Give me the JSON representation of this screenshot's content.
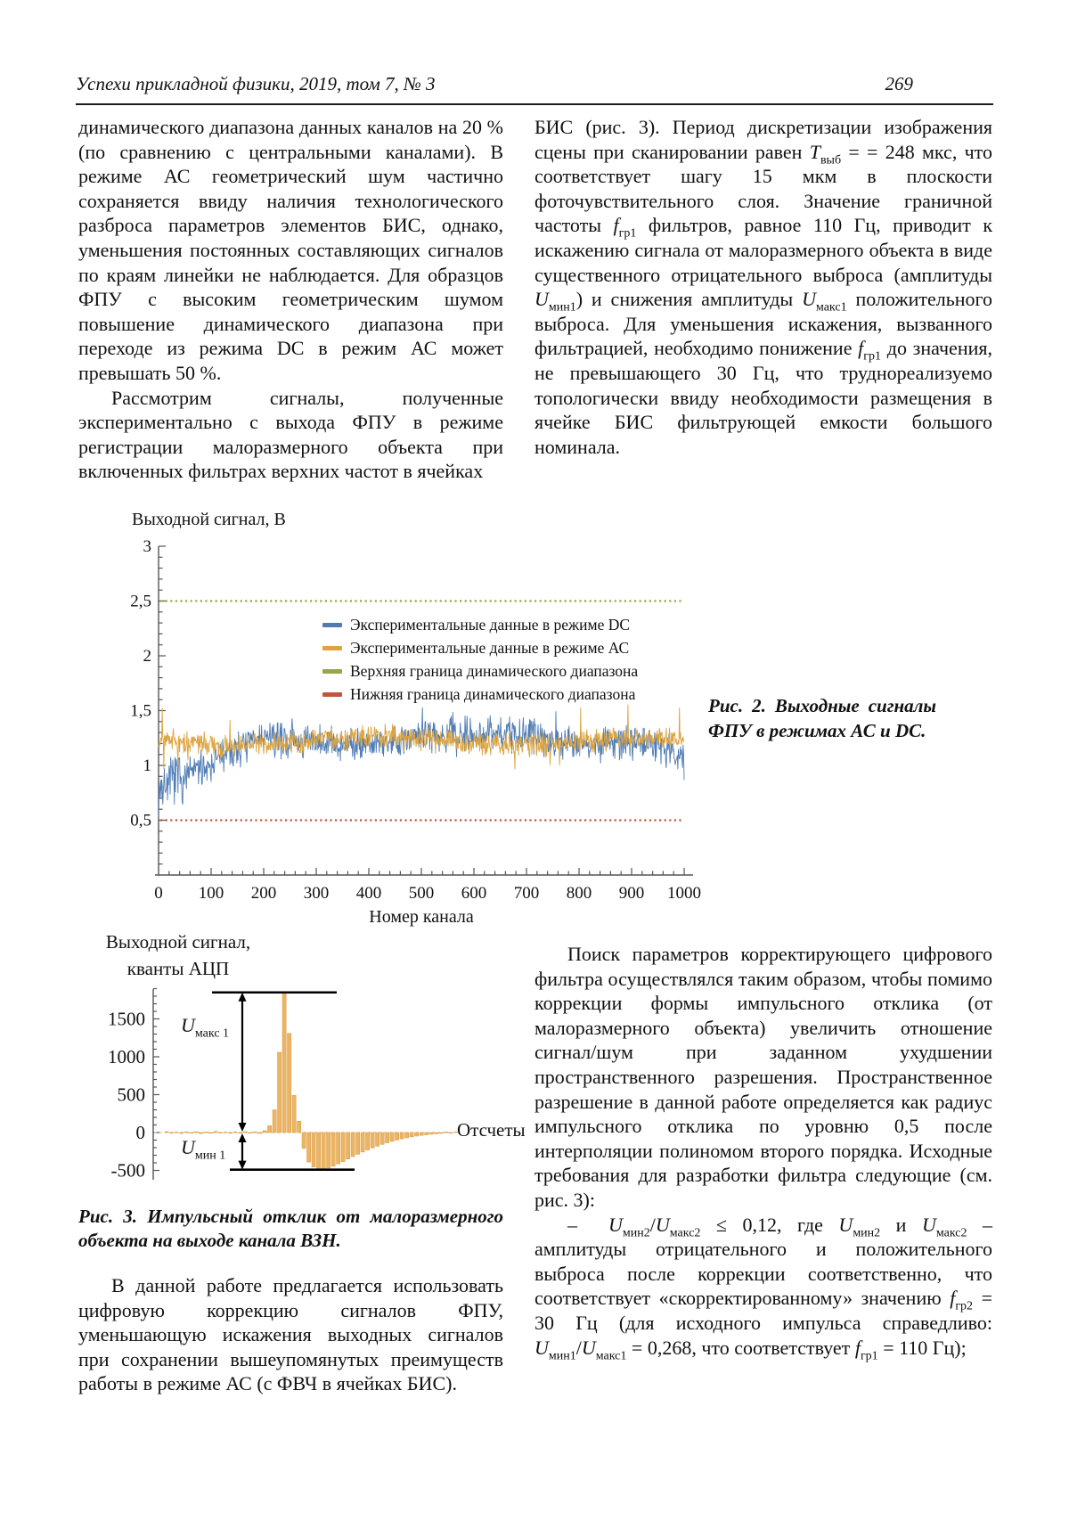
{
  "header": {
    "journal": "Успехи прикладной физики, 2019, том 7, № 3",
    "page_number": "269"
  },
  "columns": {
    "left_top": {
      "p1": "динамического диапазона данных каналов на 20 % (по сравнению с центральными каналами). В режиме АС геометрический шум частично сохраняется ввиду наличия технологического разброса параметров элементов БИС, однако, уменьшения постоянных составляющих сигналов по краям линейки не наблюдается. Для образцов ФПУ с высоким геометрическим шумом повышение динамического диапазона при переходе из режима DC в режим АС может превышать 50 %.",
      "p2": "Рассмотрим сигналы, полученные экспериментально с выхода ФПУ в режиме регистрации малоразмерного объекта при включенных фильтрах верхних частот в ячейках"
    },
    "right_top": {
      "p1": [
        {
          "t": "БИС (рис. 3). Период дискретизации изображения сцены при сканировании равен "
        },
        {
          "t": "T",
          "i": 1
        },
        {
          "t": "выб",
          "s": 1
        },
        {
          "t": " = = 248 мкс, что соответствует шагу 15 мкм в плоскости фоточувствительного слоя. Значение граничной частоты "
        },
        {
          "t": "f",
          "i": 1
        },
        {
          "t": "гр1",
          "s": 1
        },
        {
          "t": " фильтров, равное 110 Гц, приводит к искажению сигнала от малоразмерного объекта в виде существенного отрицательного выброса (амплитуды "
        },
        {
          "t": "U",
          "i": 1
        },
        {
          "t": "мин1",
          "s": 1
        },
        {
          "t": ") и снижения амплитуды "
        },
        {
          "t": "U",
          "i": 1
        },
        {
          "t": "макс1",
          "s": 1
        },
        {
          "t": " положительного выброса. Для уменьшения искажения, вызванного фильтрацией, необходимо понижение "
        },
        {
          "t": "f",
          "i": 1
        },
        {
          "t": "гр1",
          "s": 1
        },
        {
          "t": " до значения, не превышающего 30 Гц, что труднореализуемо топологически ввиду необходимости размещения в ячейке БИС фильтрующей емкости большого номинала."
        }
      ]
    },
    "left_bottom": {
      "p1": "В данной работе предлагается использовать цифровую коррекцию сигналов ФПУ, уменьшающую искажения выходных сигналов при сохранении вышеупомянутых преимуществ работы в режиме АС (с ФВЧ в ячейках БИС)."
    },
    "right_bottom": {
      "p1": "Поиск параметров корректирующего цифрового фильтра осуществлялся таким образом, чтобы помимо коррекции формы импульсного отклика (от малоразмерного объекта) увеличить отношение сигнал/шум при заданном ухудшении пространственного разрешения. Пространственное разрешение в данной работе определяется как радиус импульсного отклика по уровню 0,5 после интерполяции полиномом второго порядка. Исходные требования для разработки фильтра следующие (см. рис. 3):",
      "p2": [
        {
          "t": "–  "
        },
        {
          "t": "U",
          "i": 1
        },
        {
          "t": "мин2",
          "s": 1
        },
        {
          "t": "/"
        },
        {
          "t": "U",
          "i": 1
        },
        {
          "t": "макс2",
          "s": 1
        },
        {
          "t": " ≤ 0,12, где "
        },
        {
          "t": "U",
          "i": 1
        },
        {
          "t": "мин2",
          "s": 1
        },
        {
          "t": " и "
        },
        {
          "t": "U",
          "i": 1
        },
        {
          "t": "макс2",
          "s": 1
        },
        {
          "t": " – амплитуды отрицательного и положительного выброса после коррекции соответственно, что соответствует «скорректированному» значению "
        },
        {
          "t": "f",
          "i": 1
        },
        {
          "t": "гр2",
          "s": 1
        },
        {
          "t": " = 30 Гц (для исходного импульса справедливо: "
        },
        {
          "t": "U",
          "i": 1
        },
        {
          "t": "мин1",
          "s": 1
        },
        {
          "t": "/"
        },
        {
          "t": "U",
          "i": 1
        },
        {
          "t": "макс1",
          "s": 1
        },
        {
          "t": " = 0,268, что соответствует "
        },
        {
          "t": "f",
          "i": 1
        },
        {
          "t": "гр1",
          "s": 1
        },
        {
          "t": " = 110 Гц);"
        }
      ]
    }
  },
  "figure2": {
    "caption": "Рис. 2.  Выходные  сигналы ФПУ в режимах АС и DC."
  },
  "figure3": {
    "caption": "Рис. 3. Импульсный отклик от малоразмерного объекта на выходе канала ВЗН."
  },
  "chart_data": [
    {
      "id": "fig2",
      "type": "line",
      "title": "",
      "ylabel": "Выходной сигнал, В",
      "xlabel": "Номер канала",
      "x_range": [
        0,
        1000
      ],
      "y_range": [
        0,
        3
      ],
      "x_major_ticks": [
        0,
        100,
        200,
        300,
        400,
        500,
        600,
        700,
        800,
        900,
        1000
      ],
      "x_minor_step": 20,
      "y_major_ticks": [
        0.5,
        1,
        1.5,
        2,
        2.5,
        3
      ],
      "y_tick_labels": [
        "0,5",
        "1",
        "1,5",
        "2",
        "2,5",
        "3"
      ],
      "y_minor_step": 0.1,
      "grid": false,
      "legend_position": "inside-upper-middle",
      "series": [
        {
          "name": "Экспериментальные данные в режиме DC",
          "color": "#4f7cb4",
          "kind": "noisy",
          "start_mean": 0.78,
          "plateau_mean": 1.25,
          "rise_end_channel": 190,
          "wobble": 0.05,
          "noise": 0.11,
          "spike_chance": 0.02,
          "spike_scale": 0.28,
          "early": {
            "until": 50,
            "factor": 1.5
          },
          "end_dip": {
            "from": 950,
            "depth": 0.22
          },
          "clamp": [
            0.52,
            1.82
          ],
          "seed": 7
        },
        {
          "name": "Экспериментальные данные в режиме АС",
          "color": "#dca33e",
          "kind": "noisy",
          "start_mean": 1.2,
          "plateau_mean": 1.22,
          "rise_end_channel": 1,
          "wobble": 0.035,
          "noise": 0.075,
          "spike_chance": 0.012,
          "spike_scale": 0.3,
          "clamp": [
            0.92,
            1.68
          ],
          "seed": 3
        },
        {
          "name": "Верхняя граница динамического диапазона",
          "color": "#95a748",
          "kind": "hline",
          "value": 2.5,
          "dashed": true
        },
        {
          "name": "Нижняя граница динамического диапазона",
          "color": "#c0563e",
          "kind": "hline",
          "value": 0.5,
          "dashed": true
        }
      ]
    },
    {
      "id": "fig3",
      "type": "bar",
      "title": "",
      "ylabel_lines": [
        "Выходной сигнал,",
        "кванты АЦП"
      ],
      "xlabel": "Отсчеты",
      "y_major_ticks": [
        -500,
        0,
        500,
        1000,
        1500
      ],
      "y_minor_step": 100,
      "bar_color": "#ecb565",
      "bar_stroke": "#d79c3f",
      "values": [
        12,
        -9,
        7,
        -12,
        9,
        -6,
        11,
        -13,
        8,
        -10,
        14,
        -8,
        6,
        -11,
        10,
        -7,
        12,
        -9,
        8,
        -12,
        25,
        90,
        300,
        1060,
        1850,
        1310,
        490,
        150,
        -210,
        -390,
        -455,
        -485,
        -490,
        -470,
        -445,
        -415,
        -385,
        -350,
        -318,
        -287,
        -258,
        -230,
        -204,
        -180,
        -157,
        -136,
        -117,
        -100,
        -84,
        -70,
        -58,
        -47,
        -38,
        -30,
        -23,
        -17,
        -12,
        8,
        -6,
        10
      ],
      "annotations": {
        "u_max": {
          "base": "U",
          "sub": "макс 1",
          "value": 1850
        },
        "u_min": {
          "base": "U",
          "sub": "мин 1",
          "value": -490
        }
      }
    }
  ]
}
